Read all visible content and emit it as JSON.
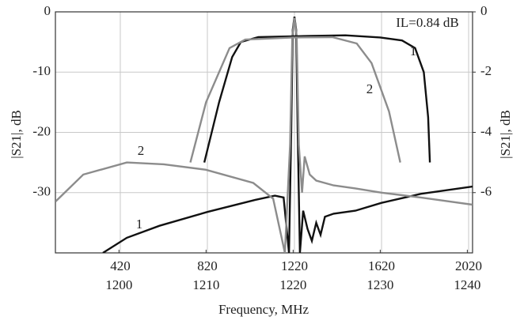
{
  "chart_data": {
    "type": "line",
    "xlabel": "Frequency,  MHz",
    "ylabel": "|S21|, dB",
    "y2label": "|S21|, dB",
    "xlim": [
      122,
      2038
    ],
    "xticks": [
      420,
      820,
      1220,
      1620,
      2020
    ],
    "x2lim": [
      1192.7,
      1240.6
    ],
    "x2ticks": [
      1200,
      1210,
      1220,
      1230,
      1240
    ],
    "ylim": [
      -40,
      0
    ],
    "yticks": [
      0,
      -10,
      -20,
      -30
    ],
    "y2lim": [
      -8,
      0
    ],
    "y2ticks": [
      0,
      -2,
      -4,
      -6
    ],
    "grid": true,
    "annotations": [
      "IL=0.84 dB",
      "1",
      "2",
      "1",
      "2"
    ],
    "series": [
      {
        "color": "#111111",
        "axis": "y",
        "x": [
          340,
          450,
          600,
          820,
          1040,
          1130,
          1170,
          1195,
          1205,
          1212,
          1220,
          1228,
          1235,
          1245,
          1260,
          1280,
          1300,
          1320,
          1340,
          1360,
          1400,
          1500,
          1620,
          1800,
          2038
        ],
        "values": [
          -40,
          -37.5,
          -35.5,
          -33.2,
          -31.2,
          -30.5,
          -30.8,
          -40,
          -20,
          -3,
          -0.8,
          -3,
          -20,
          -40,
          -33,
          -36,
          -38,
          -35,
          -37,
          -34,
          -33.5,
          -33,
          -31.7,
          -30.2,
          -29
        ]
      },
      {
        "color": "#8c8c8c",
        "axis": "y",
        "x": [
          122,
          250,
          450,
          620,
          813,
          1031,
          1122,
          1158,
          1176,
          1200,
          1210,
          1220,
          1230,
          1240,
          1255,
          1267,
          1290,
          1320,
          1400,
          1500,
          1620,
          1800,
          2038
        ],
        "values": [
          -31.5,
          -27,
          -25,
          -25.3,
          -26.2,
          -28.4,
          -31,
          -37,
          -40,
          -22,
          -4,
          -1,
          -4,
          -22,
          -30,
          -24,
          -27,
          -28,
          -28.8,
          -29.3,
          -30,
          -30.8,
          -32
        ]
      },
      {
        "color": "#111111",
        "axis": "y2",
        "x": [
          1209.8,
          1211.5,
          1213,
          1214,
          1216,
          1222,
          1226,
          1230,
          1232.5,
          1234,
          1235,
          1235.5,
          1235.7
        ],
        "values": [
          -5,
          -3,
          -1.5,
          -1,
          -0.84,
          -0.8,
          -0.78,
          -0.85,
          -0.95,
          -1.2,
          -2,
          -3.5,
          -5
        ]
      },
      {
        "color": "#8c8c8c",
        "axis": "y2",
        "x": [
          1208.2,
          1210,
          1212.7,
          1214.5,
          1220,
          1224.5,
          1227.3,
          1229,
          1231,
          1232.3
        ],
        "values": [
          -5,
          -3,
          -1.2,
          -0.92,
          -0.85,
          -0.84,
          -1.05,
          -1.7,
          -3.3,
          -5
        ]
      }
    ]
  }
}
